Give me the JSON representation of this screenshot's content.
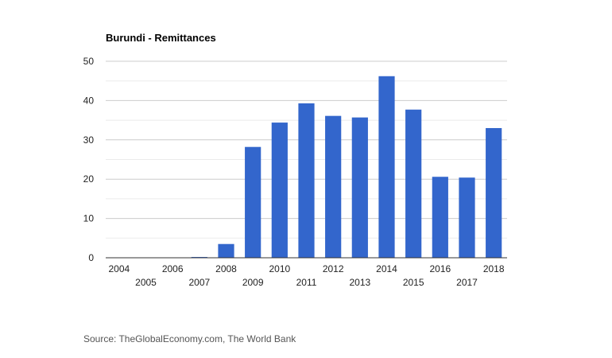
{
  "chart_data": {
    "type": "bar",
    "title": "Burundi - Remittances",
    "xlabel": "",
    "ylabel": "",
    "categories": [
      "2004",
      "2005",
      "2006",
      "2007",
      "2008",
      "2009",
      "2010",
      "2011",
      "2012",
      "2013",
      "2014",
      "2015",
      "2016",
      "2017",
      "2018"
    ],
    "values": [
      0.1,
      0.1,
      0.1,
      0.2,
      3.5,
      28.2,
      34.4,
      39.3,
      36.1,
      35.7,
      46.2,
      37.7,
      20.6,
      20.4,
      33.0
    ],
    "ylim": [
      0,
      50
    ],
    "yticks": [
      0,
      10,
      20,
      30,
      40,
      50
    ],
    "grid": true,
    "bar_color": "#3366cc"
  },
  "source": "Source: TheGlobalEconomy.com, The World Bank"
}
